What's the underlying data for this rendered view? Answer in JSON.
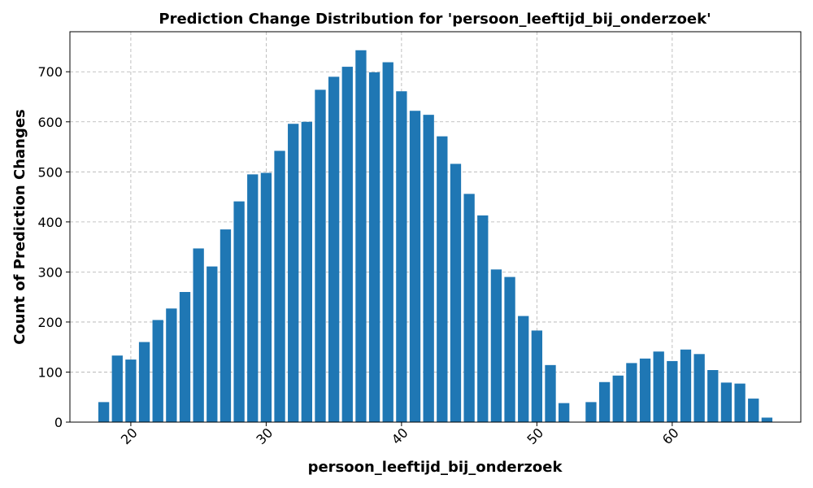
{
  "chart_data": {
    "type": "bar",
    "title": "Prediction Change Distribution for 'persoon_leeftijd_bij_onderzoek'",
    "xlabel": "persoon_leeftijd_bij_onderzoek",
    "ylabel": "Count of Prediction Changes",
    "xlim": [
      15.5,
      69.5
    ],
    "ylim": [
      0,
      780
    ],
    "xticks": [
      20,
      30,
      40,
      50,
      60
    ],
    "yticks": [
      0,
      100,
      200,
      300,
      400,
      500,
      600,
      700
    ],
    "grid": true,
    "bar_color": "#1f77b4",
    "x": [
      18,
      19,
      20,
      21,
      22,
      23,
      24,
      25,
      26,
      27,
      28,
      29,
      30,
      31,
      32,
      33,
      34,
      35,
      36,
      37,
      38,
      39,
      40,
      41,
      42,
      43,
      44,
      45,
      46,
      47,
      48,
      49,
      50,
      51,
      52,
      54,
      55,
      56,
      57,
      58,
      59,
      60,
      61,
      62,
      63,
      64,
      65,
      66,
      67
    ],
    "values": [
      40,
      133,
      125,
      160,
      204,
      227,
      260,
      347,
      311,
      385,
      441,
      495,
      498,
      542,
      596,
      600,
      664,
      690,
      710,
      743,
      699,
      719,
      661,
      622,
      614,
      571,
      516,
      456,
      413,
      305,
      290,
      212,
      183,
      114,
      38,
      40,
      80,
      93,
      118,
      127,
      141,
      122,
      145,
      136,
      104,
      79,
      77,
      47,
      9
    ]
  }
}
